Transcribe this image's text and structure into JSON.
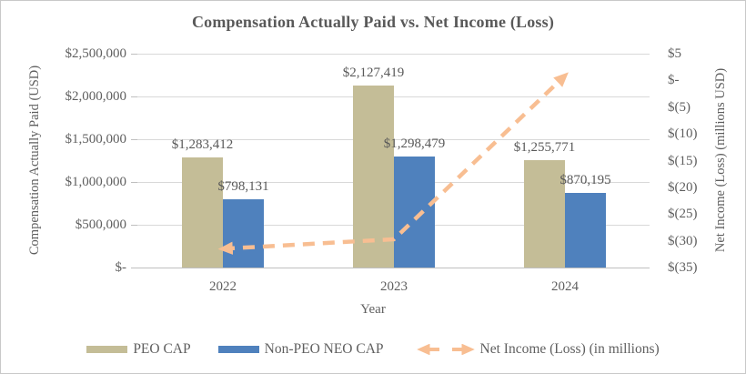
{
  "chart_data": {
    "type": "combo-bar-line",
    "title": "Compensation Actually Paid vs. Net Income (Loss)",
    "categories": [
      "2022",
      "2023",
      "2024"
    ],
    "xlabel": "Year",
    "bar_series": [
      {
        "name": "PEO CAP",
        "values": [
          1283412,
          2127419,
          1255771
        ],
        "labels": [
          "$1,283,412",
          "$2,127,419",
          "$1,255,771"
        ],
        "color": "#C4BD97"
      },
      {
        "name": "Non-PEO NEO CAP",
        "values": [
          798131,
          1298479,
          870195
        ],
        "labels": [
          "$798,131",
          "$1,298,479",
          "$870,195"
        ],
        "color": "#4F81BD"
      }
    ],
    "line_series": {
      "name": "Net Income (Loss) (in millions)",
      "values": [
        -31.5,
        -29.7,
        0.9
      ],
      "color": "#F8BE92",
      "style": "dashed",
      "markers": "arrows-both-ends"
    },
    "left_axis": {
      "title": "Compensation Actually Paid (USD)",
      "min": 0,
      "max": 2500000,
      "ticks": [
        "$2,500,000",
        "$2,000,000",
        "$1,500,000",
        "$1,000,000",
        "$500,000",
        "$-"
      ]
    },
    "right_axis": {
      "title": "Net Income (Loss) (millions USD)",
      "min": -35,
      "max": 5,
      "ticks": [
        "$5",
        "$-",
        "$(5)",
        "$(10)",
        "$(15)",
        "$(20)",
        "$(25)",
        "$(30)",
        "$(35)"
      ]
    },
    "legend": {
      "position": "bottom",
      "entries": [
        "PEO CAP",
        "Non-PEO NEO CAP",
        "Net Income (Loss) (in millions)"
      ]
    },
    "grid": "horizontal",
    "colors": {
      "gridline": "#D9D9D9",
      "axis_line": "#BFBFBF",
      "text": "#595959"
    }
  }
}
